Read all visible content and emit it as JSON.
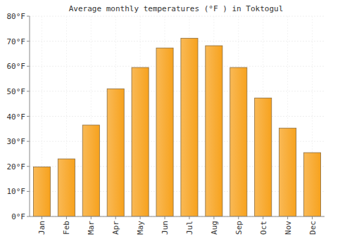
{
  "chart_data": {
    "type": "bar",
    "title": "Average monthly temperatures (°F ) in Toktogul",
    "categories": [
      "Jan",
      "Feb",
      "Mar",
      "Apr",
      "May",
      "Jun",
      "Jul",
      "Aug",
      "Sep",
      "Oct",
      "Nov",
      "Dec"
    ],
    "values": [
      19.8,
      23,
      36.5,
      51,
      59.5,
      67.3,
      71.2,
      68.2,
      59.5,
      47.3,
      35.3,
      25.5
    ],
    "color": "#f7a21d",
    "ylim": [
      0,
      80
    ],
    "yticks": [
      {
        "value": 0,
        "label": "0°F"
      },
      {
        "value": 10,
        "label": "10°F"
      },
      {
        "value": 20,
        "label": "20°F"
      },
      {
        "value": 30,
        "label": "30°F"
      },
      {
        "value": 40,
        "label": "40°F"
      },
      {
        "value": 50,
        "label": "50°F"
      },
      {
        "value": 60,
        "label": "60°F"
      },
      {
        "value": 70,
        "label": "70°F"
      },
      {
        "value": 80,
        "label": "80°F"
      }
    ],
    "grid": true
  }
}
